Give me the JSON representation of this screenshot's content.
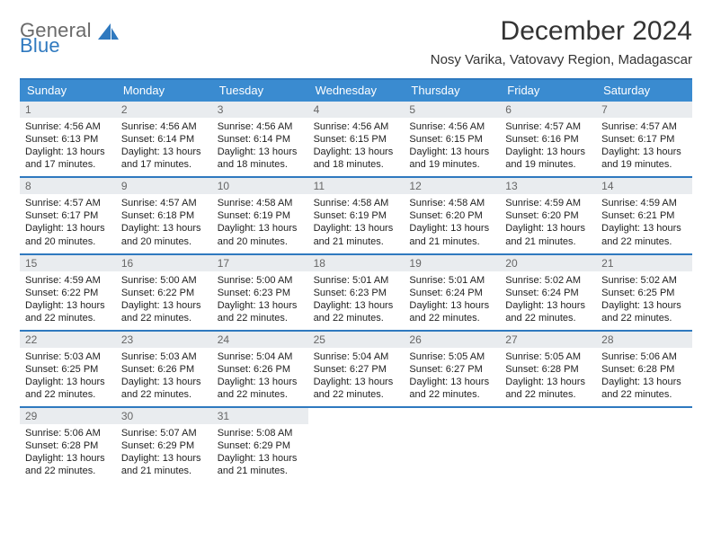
{
  "brand": {
    "word1": "General",
    "word2": "Blue",
    "logo_color": "#2f79bf",
    "brand_gray": "#6a6a6a"
  },
  "header": {
    "title": "December 2024",
    "location": "Nosy Varika, Vatovavy Region, Madagascar"
  },
  "colors": {
    "header_bg": "#3a8bd0",
    "rule": "#2f79bf",
    "daybar": "#e9ecef",
    "text": "#222222",
    "muted": "#666666",
    "white": "#ffffff"
  },
  "dow": [
    "Sunday",
    "Monday",
    "Tuesday",
    "Wednesday",
    "Thursday",
    "Friday",
    "Saturday"
  ],
  "weeks": [
    [
      {
        "n": "1",
        "sr": "4:56 AM",
        "ss": "6:13 PM",
        "dl": "13 hours and 17 minutes."
      },
      {
        "n": "2",
        "sr": "4:56 AM",
        "ss": "6:14 PM",
        "dl": "13 hours and 17 minutes."
      },
      {
        "n": "3",
        "sr": "4:56 AM",
        "ss": "6:14 PM",
        "dl": "13 hours and 18 minutes."
      },
      {
        "n": "4",
        "sr": "4:56 AM",
        "ss": "6:15 PM",
        "dl": "13 hours and 18 minutes."
      },
      {
        "n": "5",
        "sr": "4:56 AM",
        "ss": "6:15 PM",
        "dl": "13 hours and 19 minutes."
      },
      {
        "n": "6",
        "sr": "4:57 AM",
        "ss": "6:16 PM",
        "dl": "13 hours and 19 minutes."
      },
      {
        "n": "7",
        "sr": "4:57 AM",
        "ss": "6:17 PM",
        "dl": "13 hours and 19 minutes."
      }
    ],
    [
      {
        "n": "8",
        "sr": "4:57 AM",
        "ss": "6:17 PM",
        "dl": "13 hours and 20 minutes."
      },
      {
        "n": "9",
        "sr": "4:57 AM",
        "ss": "6:18 PM",
        "dl": "13 hours and 20 minutes."
      },
      {
        "n": "10",
        "sr": "4:58 AM",
        "ss": "6:19 PM",
        "dl": "13 hours and 20 minutes."
      },
      {
        "n": "11",
        "sr": "4:58 AM",
        "ss": "6:19 PM",
        "dl": "13 hours and 21 minutes."
      },
      {
        "n": "12",
        "sr": "4:58 AM",
        "ss": "6:20 PM",
        "dl": "13 hours and 21 minutes."
      },
      {
        "n": "13",
        "sr": "4:59 AM",
        "ss": "6:20 PM",
        "dl": "13 hours and 21 minutes."
      },
      {
        "n": "14",
        "sr": "4:59 AM",
        "ss": "6:21 PM",
        "dl": "13 hours and 22 minutes."
      }
    ],
    [
      {
        "n": "15",
        "sr": "4:59 AM",
        "ss": "6:22 PM",
        "dl": "13 hours and 22 minutes."
      },
      {
        "n": "16",
        "sr": "5:00 AM",
        "ss": "6:22 PM",
        "dl": "13 hours and 22 minutes."
      },
      {
        "n": "17",
        "sr": "5:00 AM",
        "ss": "6:23 PM",
        "dl": "13 hours and 22 minutes."
      },
      {
        "n": "18",
        "sr": "5:01 AM",
        "ss": "6:23 PM",
        "dl": "13 hours and 22 minutes."
      },
      {
        "n": "19",
        "sr": "5:01 AM",
        "ss": "6:24 PM",
        "dl": "13 hours and 22 minutes."
      },
      {
        "n": "20",
        "sr": "5:02 AM",
        "ss": "6:24 PM",
        "dl": "13 hours and 22 minutes."
      },
      {
        "n": "21",
        "sr": "5:02 AM",
        "ss": "6:25 PM",
        "dl": "13 hours and 22 minutes."
      }
    ],
    [
      {
        "n": "22",
        "sr": "5:03 AM",
        "ss": "6:25 PM",
        "dl": "13 hours and 22 minutes."
      },
      {
        "n": "23",
        "sr": "5:03 AM",
        "ss": "6:26 PM",
        "dl": "13 hours and 22 minutes."
      },
      {
        "n": "24",
        "sr": "5:04 AM",
        "ss": "6:26 PM",
        "dl": "13 hours and 22 minutes."
      },
      {
        "n": "25",
        "sr": "5:04 AM",
        "ss": "6:27 PM",
        "dl": "13 hours and 22 minutes."
      },
      {
        "n": "26",
        "sr": "5:05 AM",
        "ss": "6:27 PM",
        "dl": "13 hours and 22 minutes."
      },
      {
        "n": "27",
        "sr": "5:05 AM",
        "ss": "6:28 PM",
        "dl": "13 hours and 22 minutes."
      },
      {
        "n": "28",
        "sr": "5:06 AM",
        "ss": "6:28 PM",
        "dl": "13 hours and 22 minutes."
      }
    ],
    [
      {
        "n": "29",
        "sr": "5:06 AM",
        "ss": "6:28 PM",
        "dl": "13 hours and 22 minutes."
      },
      {
        "n": "30",
        "sr": "5:07 AM",
        "ss": "6:29 PM",
        "dl": "13 hours and 21 minutes."
      },
      {
        "n": "31",
        "sr": "5:08 AM",
        "ss": "6:29 PM",
        "dl": "13 hours and 21 minutes."
      },
      null,
      null,
      null,
      null
    ]
  ],
  "labels": {
    "sunrise": "Sunrise: ",
    "sunset": "Sunset: ",
    "daylight": "Daylight: "
  }
}
